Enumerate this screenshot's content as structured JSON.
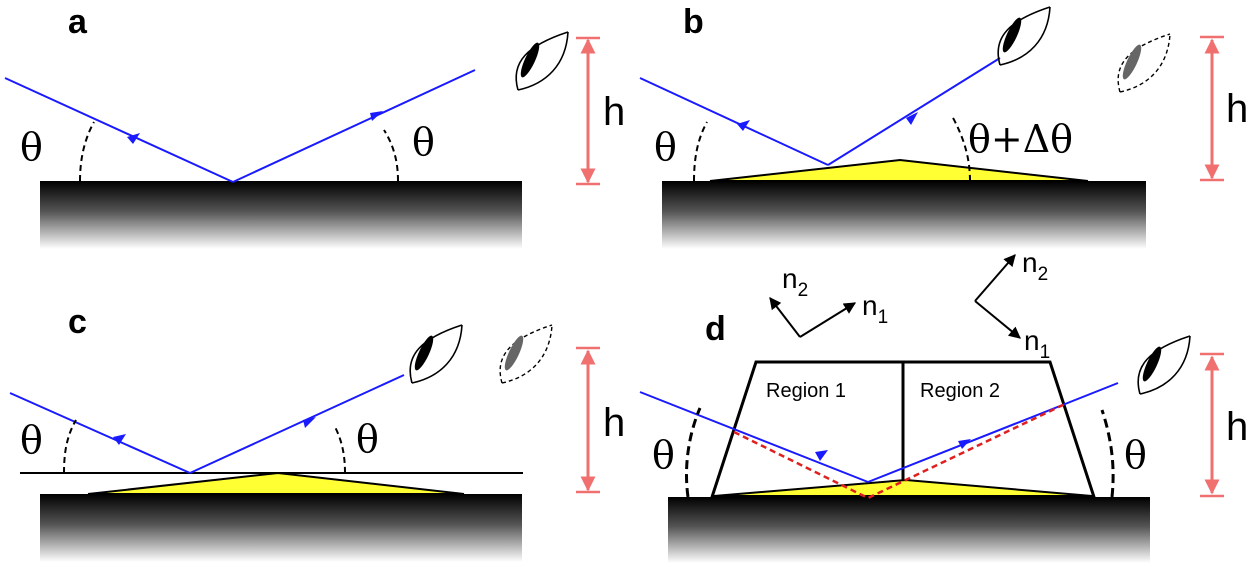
{
  "panels": {
    "a": {
      "label": "a",
      "angle_in": "θ",
      "angle_out": "θ",
      "height": "h"
    },
    "b": {
      "label": "b",
      "angle_in": "θ",
      "angle_out": "θ+Δθ",
      "height": "h"
    },
    "c": {
      "label": "c",
      "angle_in": "θ",
      "angle_out": "θ",
      "height": "h"
    },
    "d": {
      "label": "d",
      "angle_in": "θ",
      "angle_out": "θ",
      "height": "h",
      "region1": "Region 1",
      "region2": "Region 2",
      "vectors": {
        "n1": "n",
        "n1_sub": "1",
        "n2": "n",
        "n2_sub": "2"
      }
    }
  },
  "colors": {
    "ray": "#1a1aff",
    "height_arrow": "#f07070",
    "sample": "#ffff33",
    "path": "#e02020",
    "substrate_top": "#000000",
    "substrate_bottom": "#ffffff"
  },
  "icons": [
    "eye-icon",
    "eye-ghost-icon"
  ]
}
